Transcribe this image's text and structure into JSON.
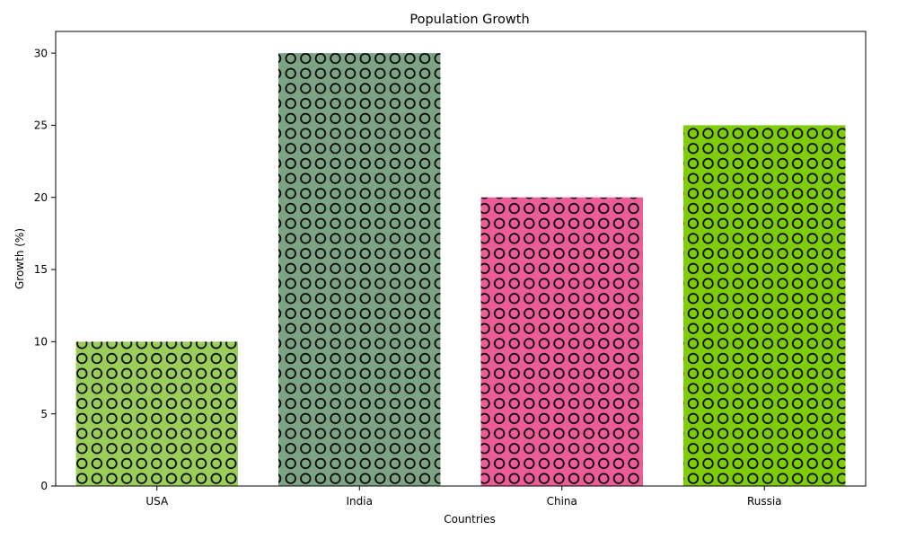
{
  "chart_data": {
    "type": "bar",
    "title": "Population Growth",
    "xlabel": "Countries",
    "ylabel": "Growth (%)",
    "categories": [
      "USA",
      "India",
      "China",
      "Russia"
    ],
    "values": [
      10,
      30,
      20,
      25
    ],
    "colors": [
      "#9acd5a",
      "#7ba384",
      "#eb5c98",
      "#7fcc0a"
    ],
    "hatch": "circles",
    "ylim": [
      0,
      31.5
    ],
    "yticks": [
      0,
      5,
      10,
      15,
      20,
      25,
      30
    ],
    "grid": false,
    "legend": "none"
  }
}
